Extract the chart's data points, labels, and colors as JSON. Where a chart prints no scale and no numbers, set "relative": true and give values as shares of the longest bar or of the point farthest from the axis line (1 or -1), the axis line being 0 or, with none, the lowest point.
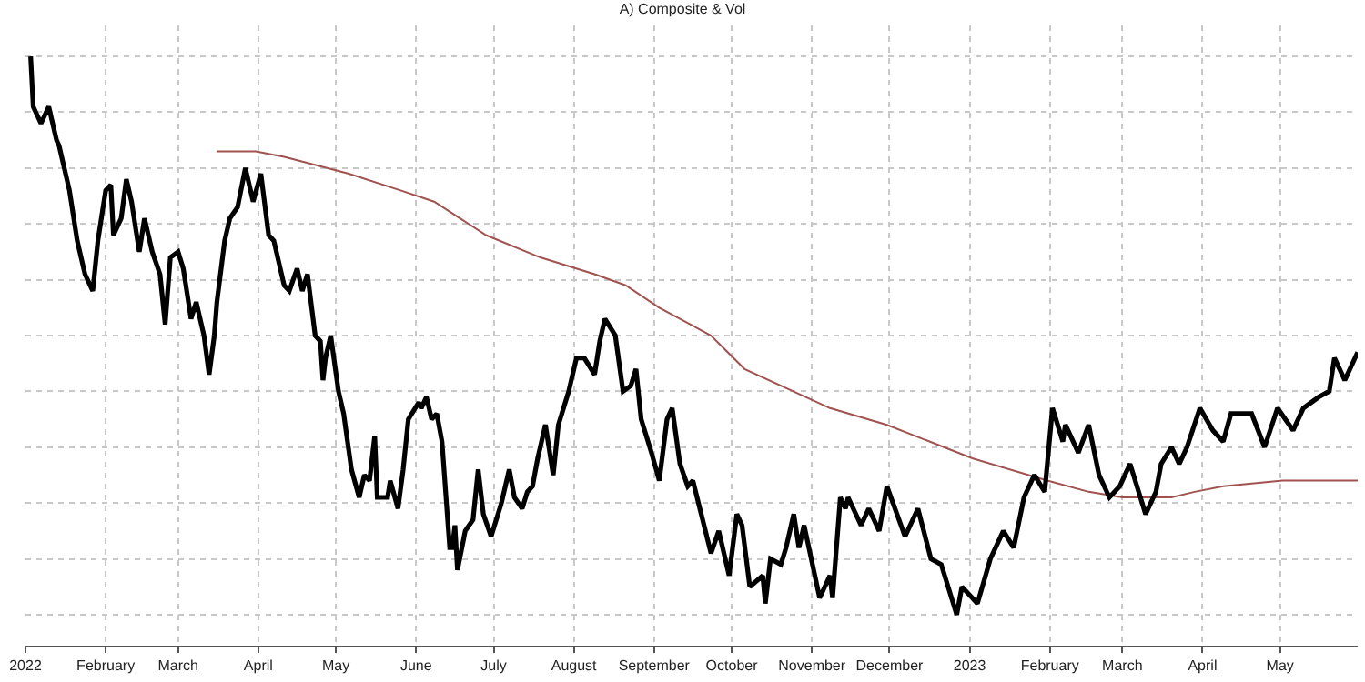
{
  "chart_data": {
    "type": "line",
    "title": "A) Composite & Vol",
    "relative": true,
    "grid": true,
    "tick_labels": "x",
    "marker": "none",
    "xlim": [
      "2022-01-01",
      "2023-05-31"
    ],
    "xticks": [
      {
        "value": "2022-01-01",
        "label": "2022"
      },
      {
        "value": "2022-02-01",
        "label": "February"
      },
      {
        "value": "2022-03-01",
        "label": "March"
      },
      {
        "value": "2022-04-01",
        "label": "April"
      },
      {
        "value": "2022-05-01",
        "label": "May"
      },
      {
        "value": "2022-06-01",
        "label": "June"
      },
      {
        "value": "2022-07-01",
        "label": "July"
      },
      {
        "value": "2022-08-01",
        "label": "August"
      },
      {
        "value": "2022-09-01",
        "label": "September"
      },
      {
        "value": "2022-10-01",
        "label": "October"
      },
      {
        "value": "2022-11-01",
        "label": "November"
      },
      {
        "value": "2022-12-01",
        "label": "December"
      },
      {
        "value": "2023-01-01",
        "label": "2023"
      },
      {
        "value": "2023-02-01",
        "label": "February"
      },
      {
        "value": "2023-03-01",
        "label": "March"
      },
      {
        "value": "2023-04-01",
        "label": "April"
      },
      {
        "value": "2023-05-01",
        "label": "May"
      }
    ],
    "series": [
      {
        "color": "#000000",
        "x": [
          "2022-01-03",
          "2022-01-04",
          "2022-01-07",
          "2022-01-10",
          "2022-01-13",
          "2022-01-14",
          "2022-01-18",
          "2022-01-21",
          "2022-01-24",
          "2022-01-27",
          "2022-01-29",
          "2022-02-01",
          "2022-02-03",
          "2022-02-04",
          "2022-02-07",
          "2022-02-09",
          "2022-02-11",
          "2022-02-14",
          "2022-02-16",
          "2022-02-19",
          "2022-02-22",
          "2022-02-24",
          "2022-02-26",
          "2022-03-01",
          "2022-03-03",
          "2022-03-06",
          "2022-03-08",
          "2022-03-11",
          "2022-03-13",
          "2022-03-15",
          "2022-03-16",
          "2022-03-19",
          "2022-03-21",
          "2022-03-24",
          "2022-03-27",
          "2022-03-30",
          "2022-04-02",
          "2022-04-05",
          "2022-04-07",
          "2022-04-11",
          "2022-04-13",
          "2022-04-16",
          "2022-04-18",
          "2022-04-20",
          "2022-04-23",
          "2022-04-25",
          "2022-04-26",
          "2022-04-27",
          "2022-04-29",
          "2022-05-02",
          "2022-05-04",
          "2022-05-07",
          "2022-05-10",
          "2022-05-12",
          "2022-05-14",
          "2022-05-16",
          "2022-05-17",
          "2022-05-21",
          "2022-05-22",
          "2022-05-25",
          "2022-05-27",
          "2022-05-29",
          "2022-06-02",
          "2022-06-03",
          "2022-06-05",
          "2022-06-07",
          "2022-06-09",
          "2022-06-11",
          "2022-06-14",
          "2022-06-15",
          "2022-06-16",
          "2022-06-17",
          "2022-06-20",
          "2022-06-23",
          "2022-06-25",
          "2022-06-27",
          "2022-06-30",
          "2022-07-04",
          "2022-07-07",
          "2022-07-09",
          "2022-07-12",
          "2022-07-14",
          "2022-07-16",
          "2022-07-18",
          "2022-07-21",
          "2022-07-24",
          "2022-07-26",
          "2022-07-30",
          "2022-08-02",
          "2022-08-05",
          "2022-08-09",
          "2022-08-11",
          "2022-08-13",
          "2022-08-17",
          "2022-08-20",
          "2022-08-23",
          "2022-08-25",
          "2022-08-27",
          "2022-08-31",
          "2022-09-03",
          "2022-09-06",
          "2022-09-08",
          "2022-09-11",
          "2022-09-14",
          "2022-09-16",
          "2022-09-23",
          "2022-09-26",
          "2022-09-30",
          "2022-10-03",
          "2022-10-05",
          "2022-10-08",
          "2022-10-13",
          "2022-10-14",
          "2022-10-16",
          "2022-10-20",
          "2022-10-22",
          "2022-10-25",
          "2022-10-27",
          "2022-10-29",
          "2022-11-04",
          "2022-11-08",
          "2022-11-09",
          "2022-11-12",
          "2022-11-14",
          "2022-11-15",
          "2022-11-20",
          "2022-11-23",
          "2022-11-27",
          "2022-11-30",
          "2022-12-07",
          "2022-12-12",
          "2022-12-17",
          "2022-12-21",
          "2022-12-27",
          "2022-12-29",
          "2023-01-02",
          "2023-01-04",
          "2023-01-09",
          "2023-01-14",
          "2023-01-18",
          "2023-01-22",
          "2023-01-26",
          "2023-01-30",
          "2023-02-02",
          "2023-02-06",
          "2023-02-07",
          "2023-02-12",
          "2023-02-16",
          "2023-02-20",
          "2023-02-24",
          "2023-02-28",
          "2023-03-04",
          "2023-03-10",
          "2023-03-14",
          "2023-03-16",
          "2023-03-20",
          "2023-03-23",
          "2023-03-26",
          "2023-03-31",
          "2023-04-05",
          "2023-04-09",
          "2023-04-12",
          "2023-04-20",
          "2023-04-25",
          "2023-04-30",
          "2023-05-06",
          "2023-05-10",
          "2023-05-16",
          "2023-05-20",
          "2023-05-22",
          "2023-05-26",
          "2023-05-31"
        ],
        "values": [
          1.0,
          0.91,
          0.88,
          0.91,
          0.85,
          0.84,
          0.76,
          0.67,
          0.61,
          0.58,
          0.67,
          0.76,
          0.77,
          0.68,
          0.71,
          0.78,
          0.74,
          0.65,
          0.71,
          0.65,
          0.61,
          0.52,
          0.64,
          0.65,
          0.62,
          0.53,
          0.56,
          0.5,
          0.43,
          0.5,
          0.56,
          0.67,
          0.71,
          0.73,
          0.8,
          0.74,
          0.79,
          0.68,
          0.67,
          0.59,
          0.58,
          0.62,
          0.58,
          0.61,
          0.5,
          0.49,
          0.42,
          0.46,
          0.5,
          0.4,
          0.36,
          0.26,
          0.21,
          0.25,
          0.24,
          0.32,
          0.21,
          0.21,
          0.24,
          0.19,
          0.26,
          0.35,
          0.38,
          0.37,
          0.39,
          0.35,
          0.36,
          0.31,
          0.12,
          0.12,
          0.16,
          0.08,
          0.15,
          0.17,
          0.26,
          0.18,
          0.14,
          0.2,
          0.26,
          0.21,
          0.19,
          0.22,
          0.23,
          0.28,
          0.34,
          0.25,
          0.34,
          0.4,
          0.46,
          0.46,
          0.43,
          0.49,
          0.53,
          0.5,
          0.4,
          0.41,
          0.44,
          0.35,
          0.29,
          0.24,
          0.35,
          0.37,
          0.27,
          0.23,
          0.24,
          0.11,
          0.15,
          0.07,
          0.18,
          0.16,
          0.05,
          0.07,
          0.02,
          0.1,
          0.09,
          0.12,
          0.18,
          0.12,
          0.16,
          0.03,
          0.07,
          0.03,
          0.21,
          0.19,
          0.21,
          0.16,
          0.19,
          0.15,
          0.23,
          0.14,
          0.19,
          0.1,
          0.09,
          0.0,
          0.05,
          0.03,
          0.02,
          0.1,
          0.15,
          0.12,
          0.21,
          0.25,
          0.22,
          0.37,
          0.31,
          0.34,
          0.29,
          0.34,
          0.25,
          0.21,
          0.23,
          0.27,
          0.18,
          0.22,
          0.27,
          0.3,
          0.27,
          0.3,
          0.37,
          0.33,
          0.31,
          0.36,
          0.36,
          0.3,
          0.37,
          0.33,
          0.37,
          0.39,
          0.4,
          0.46,
          0.42,
          0.47
        ]
      },
      {
        "color": "#a0524f",
        "x": [
          "2022-03-16",
          "2022-03-31",
          "2022-04-11",
          "2022-05-06",
          "2022-05-26",
          "2022-06-08",
          "2022-06-28",
          "2022-07-19",
          "2022-08-09",
          "2022-08-21",
          "2022-09-03",
          "2022-09-23",
          "2022-10-06",
          "2022-11-08",
          "2022-11-30",
          "2023-01-02",
          "2023-01-31",
          "2023-02-16",
          "2023-03-01",
          "2023-03-20",
          "2023-03-29",
          "2023-04-09",
          "2023-05-02",
          "2023-05-31"
        ],
        "values": [
          0.83,
          0.83,
          0.82,
          0.79,
          0.76,
          0.74,
          0.68,
          0.64,
          0.61,
          0.59,
          0.55,
          0.5,
          0.44,
          0.37,
          0.34,
          0.28,
          0.24,
          0.22,
          0.21,
          0.21,
          0.22,
          0.23,
          0.24,
          0.24
        ]
      }
    ]
  }
}
